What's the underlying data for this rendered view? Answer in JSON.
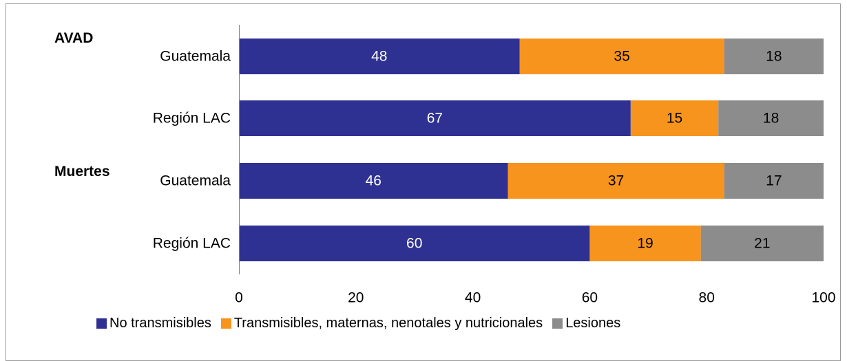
{
  "chart_data": {
    "type": "bar",
    "orientation": "horizontal",
    "stacked": true,
    "groups": [
      {
        "label": "AVAD"
      },
      {
        "label": "Muertes"
      }
    ],
    "categories": [
      "Guatemala",
      "Región LAC",
      "Guatemala",
      "Región LAC"
    ],
    "series": [
      {
        "name": "No transmisibles",
        "color": "#2e3192",
        "values": [
          48,
          67,
          46,
          60
        ]
      },
      {
        "name": "Transmisibles, maternas, nenotales y nutricionales",
        "color": "#f7941d",
        "values": [
          35,
          15,
          37,
          19
        ]
      },
      {
        "name": "Lesiones",
        "color": "#8c8c8c",
        "values": [
          18,
          18,
          17,
          21
        ]
      }
    ],
    "xlim": [
      0,
      100
    ],
    "xticks": [
      0,
      20,
      40,
      60,
      80,
      100
    ],
    "legend_position": "bottom",
    "grid": false
  }
}
